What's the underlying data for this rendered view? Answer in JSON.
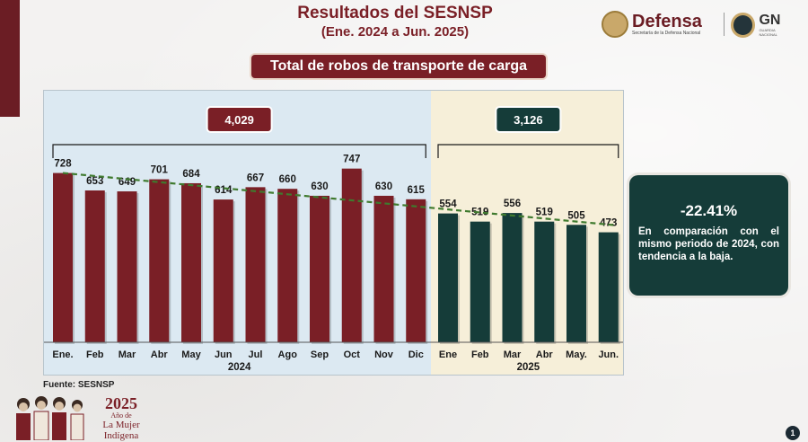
{
  "header": {
    "title": "Resultados del SESNSP",
    "subtitle": "(Ene. 2024 a Jun. 2025)",
    "banner": "Total de robos de transporte de carga"
  },
  "logos": {
    "defensa": "Defensa",
    "defensa_sub": "Secretaría de la Defensa Nacional",
    "gn": "GN",
    "gn_sub": "GUARDIA NACIONAL"
  },
  "chart_data": {
    "type": "bar",
    "categories": [
      "Ene.",
      "Feb",
      "Mar",
      "Abr",
      "May",
      "Jun",
      "Jul",
      "Ago",
      "Sep",
      "Oct",
      "Nov",
      "Dic",
      "Ene",
      "Feb",
      "Mar",
      "Abr",
      "May.",
      "Jun."
    ],
    "values": [
      728,
      653,
      649,
      701,
      684,
      614,
      667,
      660,
      630,
      747,
      630,
      615,
      554,
      519,
      556,
      519,
      505,
      473
    ],
    "groups": [
      {
        "year": "2024",
        "total": "4,029",
        "start": 0,
        "end": 11,
        "bar_color": "#7a1f26",
        "bg_color": "#dce9f2"
      },
      {
        "year": "2025",
        "total": "3,126",
        "start": 12,
        "end": 17,
        "bar_color": "#153c39",
        "bg_color": "#f6efd9"
      }
    ],
    "trendline": {
      "style": "dashed",
      "color": "#3f7a2e"
    },
    "ylim": [
      0,
      850
    ]
  },
  "info": {
    "percent": "-22.41%",
    "description": "En comparación con el mismo periodo de 2024, con tendencia a la baja."
  },
  "footer": {
    "source": "Fuente: SESNSP",
    "year_logo": "2025",
    "year_logo_line1": "Año de",
    "year_logo_line2": "La Mujer",
    "year_logo_line3": "Indígena",
    "page_number": "1"
  }
}
